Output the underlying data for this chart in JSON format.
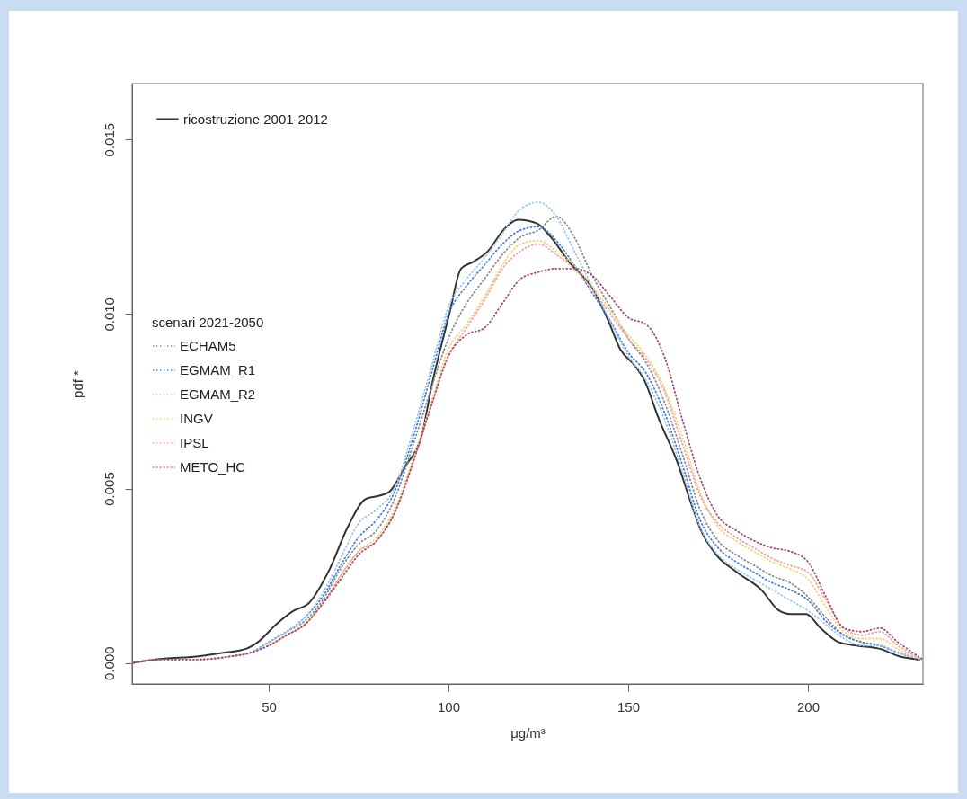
{
  "chart_data": {
    "type": "line",
    "xlabel": "μg/m³",
    "ylabel": "pdf *",
    "legend_title": "scenari 2021-2050",
    "legend": "top left",
    "grid": false,
    "marker": "none",
    "xlim": [
      12,
      232
    ],
    "xticks": [
      50,
      100,
      150,
      200
    ],
    "ylim": [
      -0.0006,
      0.0166
    ],
    "yticks": [
      {
        "value": 0,
        "label": "0.000"
      },
      {
        "value": 0.005,
        "label": "0.005"
      },
      {
        "value": 0.01,
        "label": "0.010"
      },
      {
        "value": 0.015,
        "label": "0.015"
      }
    ],
    "x": [
      12,
      20,
      30,
      40,
      45,
      50,
      55,
      60,
      65,
      70,
      75,
      80,
      85,
      90,
      95,
      100,
      105,
      110,
      115,
      120,
      125,
      130,
      135,
      140,
      145,
      150,
      155,
      160,
      165,
      170,
      175,
      180,
      185,
      190,
      195,
      200,
      205,
      210,
      215,
      220,
      225,
      232
    ],
    "series": [
      {
        "name": "ricostruzione 2001-2012",
        "color": "#333333",
        "line_style": "solid",
        "x": [
          12,
          18.5,
          31,
          37.75,
          43.5,
          47,
          52,
          57,
          61,
          67,
          72,
          77,
          81,
          83.5,
          87.75,
          92.75,
          95.25,
          100.25,
          103.5,
          107,
          111,
          115.25,
          119.5,
          124.5,
          128.5,
          133.5,
          140.25,
          144.5,
          147.75,
          152,
          154.5,
          158.5,
          163.5,
          167.75,
          170.25,
          174.5,
          180.25,
          187,
          192,
          195.25,
          199.5,
          203.5,
          208.5,
          213.5,
          220.25,
          225.25,
          231
        ],
        "values": [
          0,
          0.0001,
          0.0002,
          0.0003,
          0.0004,
          0.0006,
          0.0011,
          0.0015,
          0.0017,
          0.0027,
          0.0039,
          0.0047,
          0.0048,
          0.0049,
          0.0056,
          0.0066,
          0.0079,
          0.01,
          0.0113,
          0.0115,
          0.0118,
          0.0124,
          0.0127,
          0.0126,
          0.0122,
          0.0115,
          0.0107,
          0.0098,
          0.009,
          0.0085,
          0.0081,
          0.007,
          0.0058,
          0.0045,
          0.0038,
          0.0031,
          0.0026,
          0.0021,
          0.0015,
          0.0014,
          0.0014,
          0.001,
          0.0006,
          0.0005,
          0.0004,
          0.0002,
          0.0001
        ]
      },
      {
        "name": "ECHAM5",
        "color": "#8c8c8c",
        "line_style": "dotted",
        "values": [
          0,
          0.0001,
          0.0001,
          0.0002,
          0.0003,
          0.0006,
          0.0009,
          0.0012,
          0.0018,
          0.0027,
          0.0034,
          0.0038,
          0.0047,
          0.0062,
          0.0078,
          0.0093,
          0.0103,
          0.011,
          0.0117,
          0.0122,
          0.0124,
          0.0128,
          0.0122,
          0.0111,
          0.0102,
          0.0093,
          0.0086,
          0.0075,
          0.006,
          0.0044,
          0.0035,
          0.0031,
          0.0028,
          0.0025,
          0.0023,
          0.0019,
          0.0013,
          0.0008,
          0.0006,
          0.0005,
          0.0003,
          0.0001
        ]
      },
      {
        "name": "EGMAM_R1",
        "color": "#4a7fd0",
        "line_style": "dotted",
        "values": [
          null,
          null,
          null,
          0.0002,
          0.0003,
          0.0006,
          0.0009,
          0.0013,
          0.0019,
          0.0028,
          0.0036,
          0.0041,
          0.0049,
          0.0064,
          0.0082,
          0.01,
          0.0108,
          0.0114,
          0.012,
          0.0124,
          0.0125,
          0.0121,
          0.0114,
          0.0106,
          0.0098,
          0.0089,
          0.0083,
          0.0072,
          0.0057,
          0.0041,
          0.0033,
          0.0029,
          0.0026,
          0.0023,
          0.0021,
          0.0018,
          0.0012,
          0.0008,
          0.0006,
          0.0005,
          0.0003,
          0.0001
        ]
      },
      {
        "name": "EGMAM_R2",
        "color": "#9cc8ee",
        "line_style": "dotted",
        "values": [
          0,
          0.0001,
          0.0001,
          0.0002,
          0.0003,
          0.0006,
          0.0009,
          0.0013,
          0.002,
          0.003,
          0.004,
          0.0044,
          0.005,
          0.0066,
          0.0084,
          0.0102,
          0.011,
          0.0116,
          0.0123,
          0.013,
          0.0132,
          0.0128,
          0.0118,
          0.0108,
          0.0098,
          0.0088,
          0.0081,
          0.007,
          0.0055,
          0.0039,
          0.0031,
          0.0027,
          0.0024,
          0.0021,
          0.0018,
          0.0015,
          0.0011,
          0.0007,
          0.0005,
          0.0005,
          0.0003,
          0.0001
        ]
      },
      {
        "name": "INGV",
        "color": "#ecd67a",
        "line_style": "dotted",
        "values": [
          null,
          null,
          null,
          null,
          null,
          0.0005,
          0.0008,
          0.0011,
          0.0017,
          0.0025,
          0.0032,
          0.0036,
          0.0044,
          0.0058,
          0.0074,
          0.009,
          0.0097,
          0.0105,
          0.0114,
          0.012,
          0.0121,
          0.0118,
          0.0114,
          0.0108,
          0.0101,
          0.0094,
          0.0088,
          0.0079,
          0.0065,
          0.0049,
          0.0039,
          0.0035,
          0.0032,
          0.0029,
          0.0027,
          0.0024,
          0.0016,
          0.0009,
          0.0007,
          0.0007,
          0.0004,
          0.0001
        ]
      },
      {
        "name": "IPSL",
        "color": "#f0a0a8",
        "line_style": "dotted",
        "values": [
          null,
          null,
          0.0001,
          0.0002,
          0.0003,
          0.0005,
          0.0008,
          0.0011,
          0.0017,
          0.0025,
          0.0032,
          0.0035,
          0.0043,
          0.0057,
          0.0073,
          0.0088,
          0.0096,
          0.0104,
          0.0113,
          0.0118,
          0.012,
          0.0117,
          0.0113,
          0.0107,
          0.01,
          0.0093,
          0.0087,
          0.0078,
          0.0063,
          0.0048,
          0.004,
          0.0036,
          0.0033,
          0.003,
          0.0028,
          0.0026,
          0.0018,
          0.001,
          0.0008,
          0.0009,
          0.0005,
          0.0001
        ]
      },
      {
        "name": "METO_HC",
        "color": "#a05070",
        "line_style": "dotted",
        "values": [
          0,
          0.0001,
          0.0001,
          0.0002,
          0.0003,
          0.0005,
          0.0008,
          0.0011,
          0.0017,
          0.0024,
          0.0031,
          0.0035,
          0.0043,
          0.0057,
          0.0073,
          0.0088,
          0.0094,
          0.0096,
          0.0103,
          0.011,
          0.0112,
          0.0113,
          0.0113,
          0.0111,
          0.0105,
          0.0099,
          0.0097,
          0.0088,
          0.007,
          0.0053,
          0.0042,
          0.0038,
          0.0035,
          0.0033,
          0.0032,
          0.0029,
          0.0019,
          0.001,
          0.0009,
          0.001,
          0.0006,
          0.0001
        ]
      }
    ]
  }
}
